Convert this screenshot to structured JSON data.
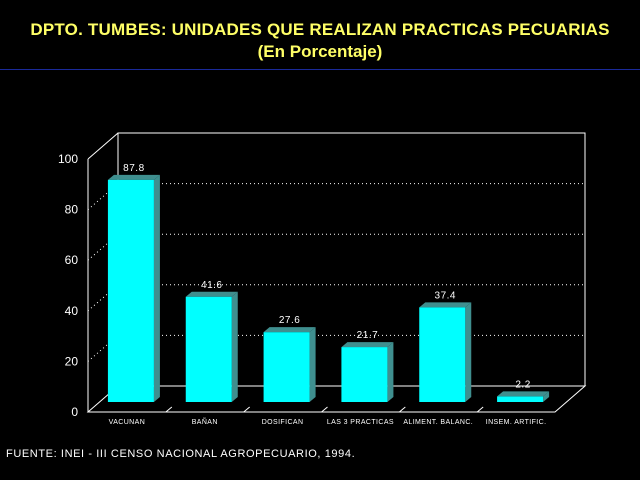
{
  "header": {
    "title": "DPTO. TUMBES: UNIDADES QUE REALIZAN PRACTICAS PECUARIAS",
    "subtitle": "(En Porcentaje)"
  },
  "footer": {
    "source": "FUENTE: INEI - III CENSO NACIONAL AGROPECUARIO, 1994."
  },
  "colors": {
    "background": "#000000",
    "title": "#ffff66",
    "bar_front": "#00ffff",
    "bar_side": "#3f8f8f",
    "grid": "#ffffff",
    "rule": "#1a2a9a"
  },
  "chart_data": {
    "type": "bar",
    "title": "DPTO. TUMBES: UNIDADES QUE REALIZAN PRACTICAS PECUARIAS",
    "subtitle": "(En Porcentaje)",
    "xlabel": "",
    "ylabel": "",
    "categories": [
      "VACUNAN",
      "BAÑAN",
      "DOSIFICAN",
      "LAS 3 PRACTICAS",
      "ALIMENT. BALANC.",
      "INSEM. ARTIFIC."
    ],
    "values": [
      87.8,
      41.6,
      27.6,
      21.7,
      37.4,
      2.2
    ],
    "data_labels": [
      "87.8",
      "41.6",
      "27.6",
      "21.7",
      "37.4",
      "2.2"
    ],
    "ylim": [
      0,
      100
    ],
    "yticks": [
      0,
      20,
      40,
      60,
      80,
      100
    ],
    "grid": true,
    "three_d": true,
    "legend": "none"
  }
}
